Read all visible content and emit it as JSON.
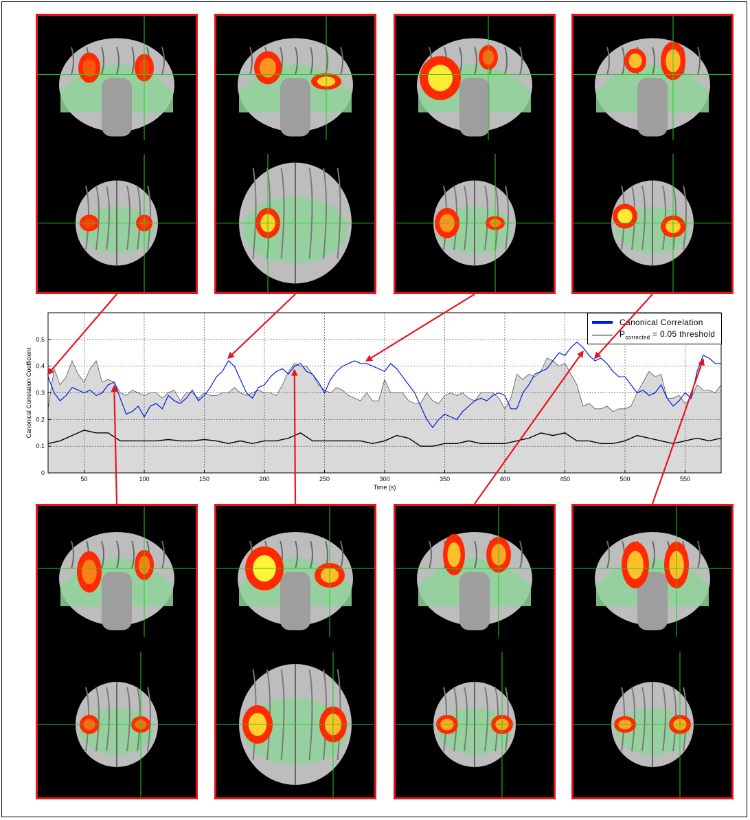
{
  "colors": {
    "panel_border": "#e8141c",
    "arrow": "#e8141c",
    "canonical_line": "#0018e6",
    "threshold_line": "#000000",
    "null_band_fill": "#d9d9d9",
    "brain_overlay": "#8fd49a",
    "activation_hot": "#ff2a00",
    "activation_peak": "#ffff3a",
    "crosshair": "#22d022"
  },
  "panels_top": [
    {
      "id": "t1",
      "time": 20,
      "views": [
        "coronal",
        "axial"
      ]
    },
    {
      "id": "t2",
      "time": 170,
      "views": [
        "coronal",
        "axial"
      ]
    },
    {
      "id": "t3",
      "time": 285,
      "views": [
        "coronal",
        "axial"
      ]
    },
    {
      "id": "t4",
      "time": 475,
      "views": [
        "coronal",
        "axial"
      ]
    }
  ],
  "panels_bottom": [
    {
      "id": "b1",
      "time": 75,
      "views": [
        "coronal",
        "axial"
      ]
    },
    {
      "id": "b2",
      "time": 225,
      "views": [
        "coronal",
        "axial"
      ]
    },
    {
      "id": "b3",
      "time": 465,
      "views": [
        "coronal",
        "axial"
      ]
    },
    {
      "id": "b4",
      "time": 565,
      "views": [
        "coronal",
        "axial"
      ]
    }
  ],
  "legend": {
    "canonical_label": "Canonical Correlation",
    "threshold_label_prefix": "P",
    "threshold_label_sub": "corrected",
    "threshold_label_suffix": " = 0.05 threshold"
  },
  "chart_data": {
    "type": "line",
    "xlabel": "Time (s)",
    "ylabel": "Canonical Correlation Coefficient",
    "xlim": [
      20,
      580
    ],
    "ylim": [
      0,
      0.6
    ],
    "xticks": [
      50,
      100,
      150,
      200,
      250,
      300,
      350,
      400,
      450,
      500,
      550
    ],
    "yticks": [
      0,
      0.1,
      0.2,
      0.3,
      0.4,
      0.5
    ],
    "grid": true,
    "legend_position": "top-right",
    "series": [
      {
        "name": "Canonical Correlation",
        "x": [
          20,
          25,
          30,
          35,
          40,
          45,
          50,
          55,
          60,
          65,
          70,
          75,
          80,
          85,
          90,
          95,
          100,
          105,
          110,
          115,
          120,
          125,
          130,
          135,
          140,
          145,
          150,
          155,
          160,
          165,
          170,
          175,
          180,
          185,
          190,
          195,
          200,
          205,
          210,
          215,
          220,
          225,
          230,
          235,
          240,
          245,
          250,
          255,
          260,
          265,
          270,
          275,
          280,
          285,
          290,
          295,
          300,
          305,
          310,
          315,
          320,
          325,
          330,
          335,
          340,
          345,
          350,
          355,
          360,
          365,
          370,
          375,
          380,
          385,
          390,
          395,
          400,
          405,
          410,
          415,
          420,
          425,
          430,
          435,
          440,
          445,
          450,
          455,
          460,
          465,
          470,
          475,
          480,
          485,
          490,
          495,
          500,
          505,
          510,
          515,
          520,
          525,
          530,
          535,
          540,
          545,
          550,
          555,
          560,
          565,
          570,
          575,
          580
        ],
        "y": [
          0.36,
          0.3,
          0.27,
          0.29,
          0.32,
          0.31,
          0.3,
          0.31,
          0.29,
          0.3,
          0.33,
          0.34,
          0.28,
          0.22,
          0.23,
          0.25,
          0.21,
          0.25,
          0.26,
          0.24,
          0.29,
          0.27,
          0.26,
          0.28,
          0.31,
          0.27,
          0.29,
          0.32,
          0.36,
          0.38,
          0.42,
          0.4,
          0.35,
          0.3,
          0.28,
          0.32,
          0.33,
          0.36,
          0.38,
          0.39,
          0.37,
          0.4,
          0.41,
          0.38,
          0.37,
          0.34,
          0.3,
          0.35,
          0.38,
          0.4,
          0.41,
          0.42,
          0.41,
          0.41,
          0.4,
          0.39,
          0.38,
          0.41,
          0.39,
          0.36,
          0.33,
          0.3,
          0.25,
          0.2,
          0.17,
          0.2,
          0.22,
          0.21,
          0.2,
          0.23,
          0.25,
          0.27,
          0.28,
          0.27,
          0.29,
          0.3,
          0.29,
          0.24,
          0.24,
          0.3,
          0.33,
          0.37,
          0.38,
          0.39,
          0.42,
          0.45,
          0.44,
          0.47,
          0.49,
          0.47,
          0.44,
          0.42,
          0.43,
          0.41,
          0.38,
          0.36,
          0.36,
          0.33,
          0.3,
          0.31,
          0.29,
          0.3,
          0.33,
          0.28,
          0.25,
          0.27,
          0.3,
          0.28,
          0.38,
          0.44,
          0.43,
          0.41,
          0.41
        ]
      },
      {
        "name": "Pcorrected = 0.05 threshold",
        "x": [
          20,
          30,
          40,
          50,
          60,
          70,
          80,
          90,
          100,
          110,
          120,
          130,
          140,
          150,
          160,
          170,
          180,
          190,
          200,
          210,
          220,
          230,
          240,
          250,
          260,
          270,
          280,
          290,
          300,
          310,
          320,
          330,
          340,
          350,
          360,
          370,
          380,
          390,
          400,
          410,
          420,
          430,
          440,
          450,
          460,
          470,
          480,
          490,
          500,
          510,
          520,
          530,
          540,
          550,
          560,
          570,
          580
        ],
        "y": [
          0.11,
          0.12,
          0.14,
          0.16,
          0.15,
          0.15,
          0.12,
          0.12,
          0.12,
          0.12,
          0.125,
          0.12,
          0.12,
          0.125,
          0.12,
          0.11,
          0.12,
          0.11,
          0.12,
          0.12,
          0.13,
          0.15,
          0.12,
          0.12,
          0.12,
          0.12,
          0.12,
          0.11,
          0.12,
          0.14,
          0.13,
          0.1,
          0.1,
          0.11,
          0.11,
          0.12,
          0.11,
          0.11,
          0.11,
          0.12,
          0.13,
          0.15,
          0.14,
          0.15,
          0.12,
          0.12,
          0.11,
          0.11,
          0.12,
          0.14,
          0.13,
          0.12,
          0.11,
          0.12,
          0.13,
          0.12,
          0.13
        ]
      }
    ],
    "null_band_upper": {
      "x": [
        20,
        25,
        30,
        35,
        40,
        45,
        50,
        55,
        60,
        65,
        70,
        75,
        80,
        85,
        90,
        95,
        100,
        105,
        110,
        115,
        120,
        125,
        130,
        135,
        140,
        145,
        150,
        155,
        160,
        165,
        170,
        175,
        180,
        185,
        190,
        195,
        200,
        205,
        210,
        215,
        220,
        225,
        230,
        235,
        240,
        245,
        250,
        255,
        260,
        265,
        270,
        275,
        280,
        285,
        290,
        295,
        300,
        305,
        310,
        315,
        320,
        325,
        330,
        335,
        340,
        345,
        350,
        355,
        360,
        365,
        370,
        375,
        380,
        385,
        390,
        395,
        400,
        405,
        410,
        415,
        420,
        425,
        430,
        435,
        440,
        445,
        450,
        455,
        460,
        465,
        470,
        475,
        480,
        485,
        490,
        495,
        500,
        505,
        510,
        515,
        520,
        525,
        530,
        535,
        540,
        545,
        550,
        555,
        560,
        565,
        570,
        575,
        580
      ],
      "y": [
        0.24,
        0.39,
        0.33,
        0.36,
        0.42,
        0.37,
        0.34,
        0.39,
        0.42,
        0.34,
        0.35,
        0.34,
        0.3,
        0.29,
        0.31,
        0.3,
        0.29,
        0.3,
        0.3,
        0.28,
        0.3,
        0.31,
        0.27,
        0.3,
        0.3,
        0.28,
        0.3,
        0.29,
        0.29,
        0.3,
        0.3,
        0.32,
        0.3,
        0.29,
        0.3,
        0.31,
        0.3,
        0.3,
        0.29,
        0.33,
        0.38,
        0.41,
        0.4,
        0.4,
        0.37,
        0.33,
        0.31,
        0.3,
        0.32,
        0.31,
        0.29,
        0.28,
        0.27,
        0.3,
        0.27,
        0.27,
        0.35,
        0.3,
        0.3,
        0.3,
        0.27,
        0.26,
        0.26,
        0.3,
        0.27,
        0.26,
        0.29,
        0.3,
        0.29,
        0.3,
        0.28,
        0.27,
        0.3,
        0.3,
        0.3,
        0.28,
        0.24,
        0.28,
        0.37,
        0.35,
        0.37,
        0.36,
        0.38,
        0.43,
        0.42,
        0.4,
        0.41,
        0.37,
        0.33,
        0.25,
        0.26,
        0.24,
        0.24,
        0.25,
        0.23,
        0.24,
        0.24,
        0.25,
        0.3,
        0.34,
        0.38,
        0.36,
        0.37,
        0.28,
        0.28,
        0.29,
        0.26,
        0.28,
        0.33,
        0.31,
        0.31,
        0.3,
        0.33
      ],
      "lower": 0
    }
  }
}
